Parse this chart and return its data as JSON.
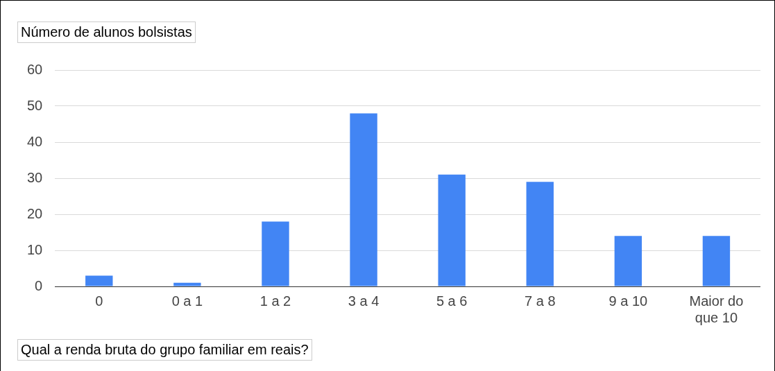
{
  "chart_data": {
    "type": "bar",
    "ylabel": "Número de alunos bolsistas",
    "xlabel": "Qual a renda bruta do grupo familiar em reais?",
    "categories": [
      "0",
      "0 a 1",
      "1 a 2",
      "3 a 4",
      "5 a 6",
      "7 a 8",
      "9 a 10",
      "Maior do que 10"
    ],
    "values": [
      3,
      1,
      18,
      48,
      31,
      29,
      14,
      14
    ],
    "color": "#4285f4",
    "ylim": [
      0,
      60
    ],
    "yticks": [
      0,
      10,
      20,
      30,
      40,
      50,
      60
    ],
    "grid": "y",
    "legend": false
  }
}
